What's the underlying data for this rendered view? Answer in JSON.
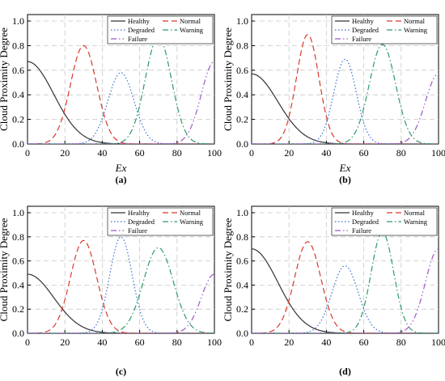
{
  "figure": {
    "colors": {
      "Healthy": "#333333",
      "Normal": "#d9382b",
      "Degraded": "#3a6fd1",
      "Warning": "#2a9a6a",
      "Failure": "#9b59c9"
    },
    "line_styles": {
      "Healthy": "solid",
      "Normal": "dashed",
      "Degraded": "dotted",
      "Warning": "dash-dot",
      "Failure": "dash-dot-dot"
    }
  },
  "chart_data": [
    {
      "type": "line",
      "subfigure_label": "(a)",
      "xlabel": "Ex",
      "ylabel": "Cloud Proximity Degree",
      "xlim": [
        0,
        100
      ],
      "ylim": [
        0,
        1.0
      ],
      "xticks": [
        0,
        20,
        40,
        60,
        80,
        100
      ],
      "yticks": [
        0.0,
        0.2,
        0.4,
        0.6,
        0.8,
        1.0
      ],
      "grid": true,
      "legend_position": "top-right",
      "legend": [
        "Healthy",
        "Normal",
        "Degraded",
        "Warning",
        "Failure"
      ],
      "series": [
        {
          "name": "Healthy",
          "center": 0,
          "peak": 0.67,
          "width": 14
        },
        {
          "name": "Normal",
          "center": 30,
          "peak": 0.8,
          "width": 7
        },
        {
          "name": "Degraded",
          "center": 50,
          "peak": 0.58,
          "width": 7
        },
        {
          "name": "Warning",
          "center": 70,
          "peak": 0.87,
          "width": 7
        },
        {
          "name": "Failure",
          "center": 100,
          "peak": 0.67,
          "width": 7
        }
      ]
    },
    {
      "type": "line",
      "subfigure_label": "(b)",
      "xlabel": "Ex",
      "ylabel": "Cloud Proximity Degree",
      "xlim": [
        0,
        100
      ],
      "ylim": [
        0,
        1.0
      ],
      "xticks": [
        0,
        20,
        40,
        60,
        80,
        100
      ],
      "yticks": [
        0.0,
        0.2,
        0.4,
        0.6,
        0.8,
        1.0
      ],
      "grid": true,
      "legend_position": "top-right",
      "legend": [
        "Healthy",
        "Normal",
        "Degraded",
        "Warning",
        "Failure"
      ],
      "series": [
        {
          "name": "Healthy",
          "center": 0,
          "peak": 0.57,
          "width": 14
        },
        {
          "name": "Normal",
          "center": 30,
          "peak": 0.89,
          "width": 6
        },
        {
          "name": "Degraded",
          "center": 50,
          "peak": 0.69,
          "width": 6
        },
        {
          "name": "Warning",
          "center": 70,
          "peak": 0.81,
          "width": 7
        },
        {
          "name": "Failure",
          "center": 100,
          "peak": 0.57,
          "width": 7
        }
      ]
    },
    {
      "type": "line",
      "subfigure_label": "(c)",
      "xlabel": "",
      "ylabel": "Cloud Proximity Degree",
      "xlim": [
        0,
        100
      ],
      "ylim": [
        0,
        1.0
      ],
      "xticks": [
        0,
        20,
        40,
        60,
        80,
        100
      ],
      "yticks": [
        0.0,
        0.2,
        0.4,
        0.6,
        0.8,
        1.0
      ],
      "grid": true,
      "legend_position": "top-right",
      "legend": [
        "Healthy",
        "Normal",
        "Degraded",
        "Warning",
        "Failure"
      ],
      "series": [
        {
          "name": "Healthy",
          "center": 0,
          "peak": 0.49,
          "width": 14
        },
        {
          "name": "Normal",
          "center": 30,
          "peak": 0.77,
          "width": 7
        },
        {
          "name": "Degraded",
          "center": 50,
          "peak": 0.8,
          "width": 6
        },
        {
          "name": "Warning",
          "center": 70,
          "peak": 0.71,
          "width": 8
        },
        {
          "name": "Failure",
          "center": 100,
          "peak": 0.49,
          "width": 7
        }
      ]
    },
    {
      "type": "line",
      "subfigure_label": "(d)",
      "xlabel": "",
      "ylabel": "Cloud Proximity Degree",
      "xlim": [
        0,
        100
      ],
      "ylim": [
        0,
        1.0
      ],
      "xticks": [
        0,
        20,
        40,
        60,
        80,
        100
      ],
      "yticks": [
        0.0,
        0.2,
        0.4,
        0.6,
        0.8,
        1.0
      ],
      "grid": true,
      "legend_position": "top-right",
      "legend": [
        "Healthy",
        "Normal",
        "Degraded",
        "Warning",
        "Failure"
      ],
      "series": [
        {
          "name": "Healthy",
          "center": 0,
          "peak": 0.7,
          "width": 14
        },
        {
          "name": "Normal",
          "center": 30,
          "peak": 0.76,
          "width": 7
        },
        {
          "name": "Degraded",
          "center": 50,
          "peak": 0.56,
          "width": 7
        },
        {
          "name": "Warning",
          "center": 70,
          "peak": 0.84,
          "width": 6
        },
        {
          "name": "Failure",
          "center": 100,
          "peak": 0.7,
          "width": 7
        }
      ]
    }
  ]
}
